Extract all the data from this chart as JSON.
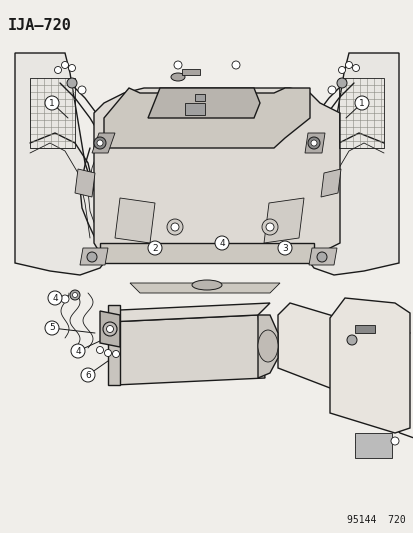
{
  "title": "IJA–720",
  "footer": "95144  720",
  "bg_color": "#f0eeea",
  "line_color": "#1a1a1a",
  "callout_color": "#000000",
  "title_fontsize": 11,
  "footer_fontsize": 7
}
